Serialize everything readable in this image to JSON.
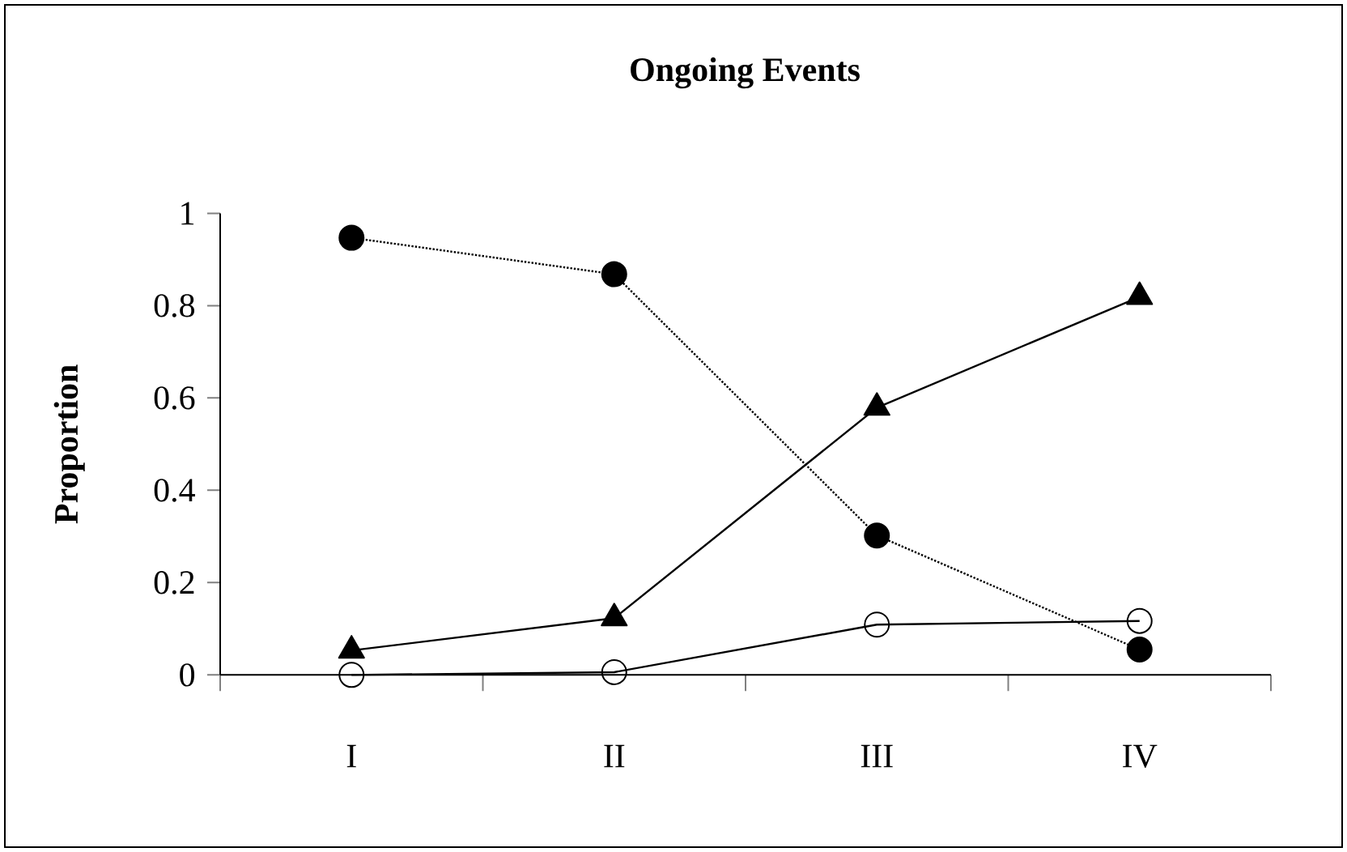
{
  "chart_data": {
    "type": "line",
    "title": "Ongoing Events",
    "ylabel": "Proportion",
    "categories": [
      "I",
      "II",
      "III",
      "IV"
    ],
    "series": [
      {
        "color": "#000000",
        "marker": "circle",
        "line_style": "dotted",
        "values": [
          0.947,
          0.868,
          0.302,
          0.055
        ]
      },
      {
        "color": "#000000",
        "marker": "triangle",
        "line_style": "solid",
        "values": [
          0.053,
          0.123,
          0.579,
          0.819
        ]
      },
      {
        "color": "#000000",
        "marker": "circle-open",
        "line_style": "solid",
        "values": [
          0.0,
          0.006,
          0.109,
          0.117
        ]
      }
    ],
    "ylim": [
      0,
      1
    ],
    "yticks": [
      0,
      0.2,
      0.4,
      0.6,
      0.8,
      1
    ],
    "grid": false
  }
}
